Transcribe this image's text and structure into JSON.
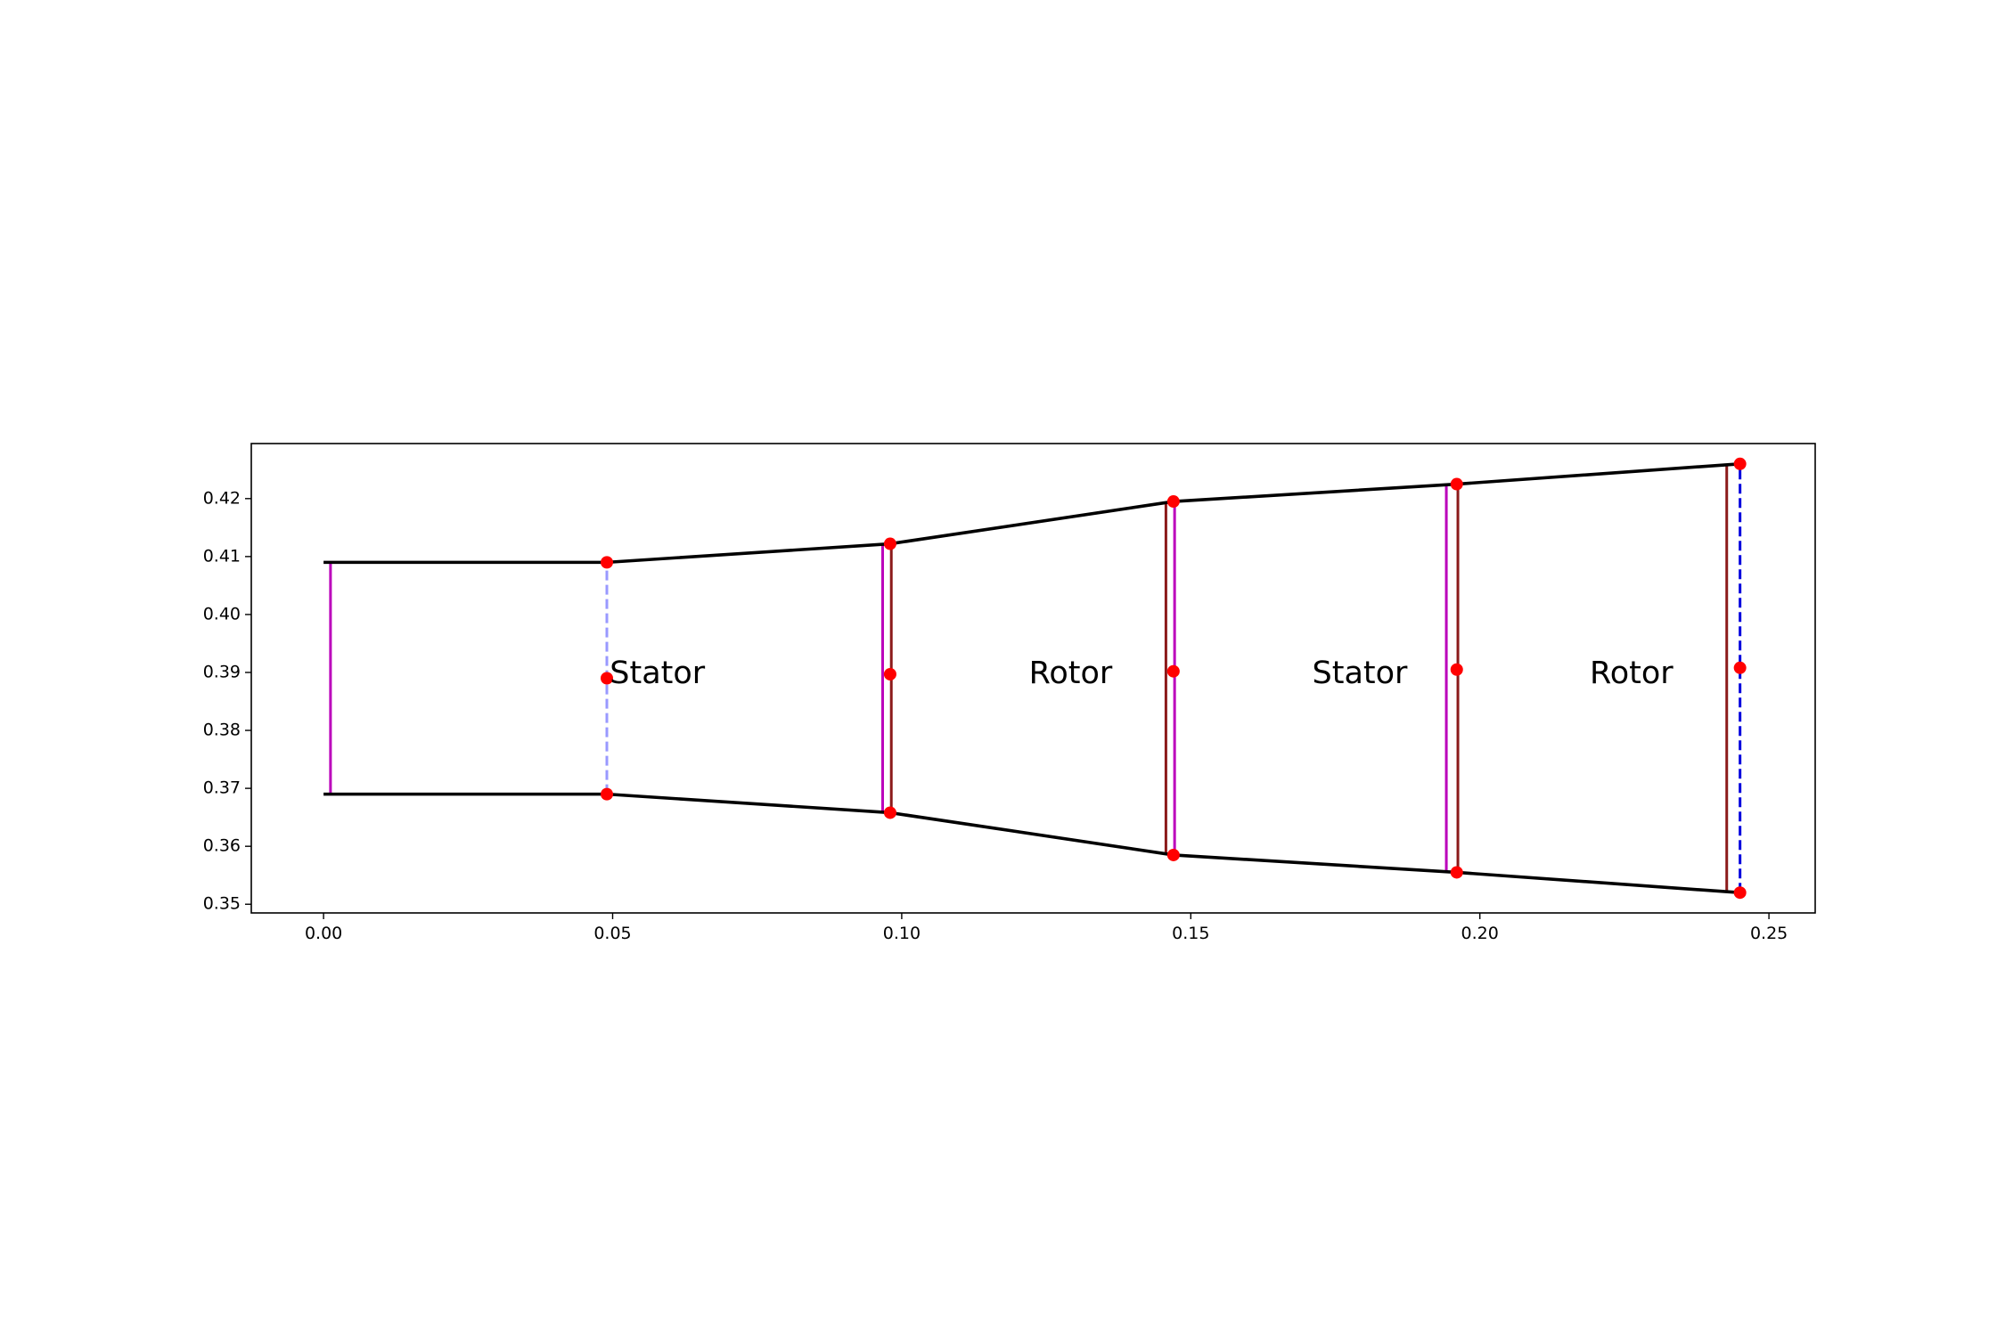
{
  "chart_data": {
    "type": "line",
    "title": "",
    "xlabel": "",
    "ylabel": "",
    "xlim": [
      -0.0125,
      0.258
    ],
    "ylim": [
      0.3485,
      0.4295
    ],
    "grid": false,
    "x_ticks": [
      {
        "value": 0.0,
        "label": "0.00"
      },
      {
        "value": 0.05,
        "label": "0.05"
      },
      {
        "value": 0.1,
        "label": "0.10"
      },
      {
        "value": 0.15,
        "label": "0.15"
      },
      {
        "value": 0.2,
        "label": "0.20"
      },
      {
        "value": 0.25,
        "label": "0.25"
      }
    ],
    "y_ticks": [
      {
        "value": 0.35,
        "label": "0.35"
      },
      {
        "value": 0.36,
        "label": "0.36"
      },
      {
        "value": 0.37,
        "label": "0.37"
      },
      {
        "value": 0.38,
        "label": "0.38"
      },
      {
        "value": 0.39,
        "label": "0.39"
      },
      {
        "value": 0.4,
        "label": "0.40"
      },
      {
        "value": 0.41,
        "label": "0.41"
      },
      {
        "value": 0.42,
        "label": "0.42"
      }
    ],
    "shroud_line": {
      "color": "#000000",
      "x": [
        0.0,
        0.049,
        0.098,
        0.147,
        0.196,
        0.245
      ],
      "y": [
        0.409,
        0.409,
        0.4122,
        0.4195,
        0.4225,
        0.426
      ]
    },
    "hub_line": {
      "color": "#000000",
      "x": [
        0.0,
        0.049,
        0.098,
        0.147,
        0.196,
        0.245
      ],
      "y": [
        0.369,
        0.369,
        0.3658,
        0.3585,
        0.3555,
        0.352
      ]
    },
    "control_points": {
      "color": "#ff0000",
      "x": [
        0.049,
        0.049,
        0.049,
        0.098,
        0.098,
        0.098,
        0.147,
        0.147,
        0.147,
        0.196,
        0.196,
        0.196,
        0.245,
        0.245,
        0.245
      ],
      "y": [
        0.409,
        0.389,
        0.369,
        0.4122,
        0.3897,
        0.3658,
        0.4195,
        0.3902,
        0.3585,
        0.4225,
        0.3905,
        0.3555,
        0.426,
        0.3908,
        0.352
      ]
    },
    "vertical_lines": [
      {
        "x": 0.0012,
        "y_bottom": 0.369,
        "y_top": 0.409,
        "color": "#bb00bb",
        "style": "solid"
      },
      {
        "x": 0.049,
        "y_bottom": 0.369,
        "y_top": 0.409,
        "color": "#9999ff",
        "style": "dashed"
      },
      {
        "x": 0.0967,
        "y_bottom": 0.3659,
        "y_top": 0.4121,
        "color": "#bb00bb",
        "style": "solid"
      },
      {
        "x": 0.0982,
        "y_bottom": 0.3658,
        "y_top": 0.4122,
        "color": "#8b1a1a",
        "style": "solid"
      },
      {
        "x": 0.1457,
        "y_bottom": 0.3587,
        "y_top": 0.4193,
        "color": "#8b1a1a",
        "style": "solid"
      },
      {
        "x": 0.1472,
        "y_bottom": 0.3585,
        "y_top": 0.4195,
        "color": "#bb00bb",
        "style": "solid"
      },
      {
        "x": 0.1942,
        "y_bottom": 0.3556,
        "y_top": 0.4224,
        "color": "#bb00bb",
        "style": "solid"
      },
      {
        "x": 0.1962,
        "y_bottom": 0.3555,
        "y_top": 0.4225,
        "color": "#8b1a1a",
        "style": "solid"
      },
      {
        "x": 0.2427,
        "y_bottom": 0.3522,
        "y_top": 0.4258,
        "color": "#8b1a1a",
        "style": "solid"
      },
      {
        "x": 0.245,
        "y_bottom": 0.352,
        "y_top": 0.426,
        "color": "#0000dd",
        "style": "dashed"
      }
    ],
    "annotations": [
      {
        "text": "Stator",
        "x": 0.0495,
        "y": 0.3897
      },
      {
        "text": "Rotor",
        "x": 0.122,
        "y": 0.3897
      },
      {
        "text": "Stator",
        "x": 0.171,
        "y": 0.3897
      },
      {
        "text": "Rotor",
        "x": 0.219,
        "y": 0.3897
      }
    ]
  }
}
